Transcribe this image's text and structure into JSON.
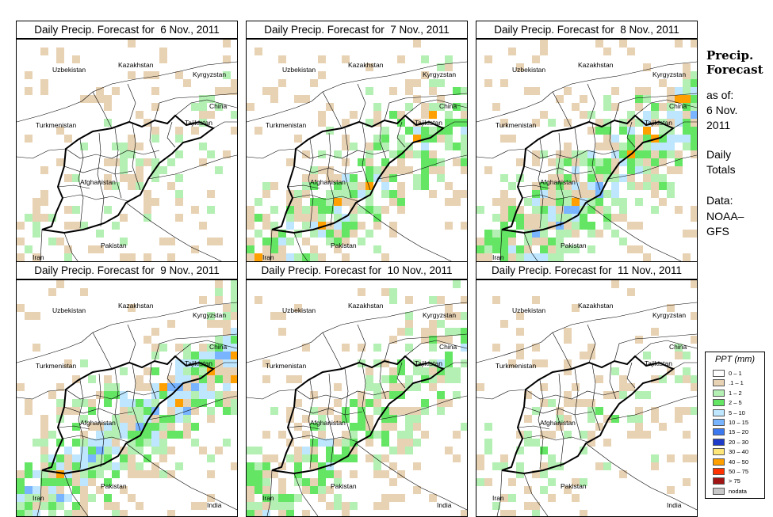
{
  "panels": [
    {
      "title": "Daily Precip. Forecast for  6 Nov., 2011",
      "seed": 3,
      "intensity": 0.2
    },
    {
      "title": "Daily Precip. Forecast for  7 Nov., 2011",
      "seed": 11,
      "intensity": 0.7
    },
    {
      "title": "Daily Precip. Forecast for  8 Nov., 2011",
      "seed": 29,
      "intensity": 0.85
    },
    {
      "title": "Daily Precip. Forecast for  9 Nov., 2011",
      "seed": 41,
      "intensity": 0.9
    },
    {
      "title": "Daily Precip. Forecast for  10 Nov., 2011",
      "seed": 57,
      "intensity": 0.6
    },
    {
      "title": "Daily Precip. Forecast for  11 Nov., 2011",
      "seed": 73,
      "intensity": 0.3
    }
  ],
  "countries": [
    "Uzbekistan",
    "Kazakhstan",
    "Kyrgyzstan",
    "China",
    "Turkmenistan",
    "Tajikistan",
    "Afghanistan",
    "Iran",
    "Pakistan",
    "India"
  ],
  "side": {
    "title": "Precip. Forecast",
    "asof": "as of:",
    "date": "6 Nov. 2011",
    "totals": "Daily Totals",
    "data_label": "Data:",
    "source": "NOAA–GFS"
  },
  "legend": {
    "title": "PPT (mm)",
    "items": [
      {
        "label": "0 – 1",
        "color": "#ffffff"
      },
      {
        "label": ".1 – 1",
        "color": "#e8d2b4"
      },
      {
        "label": "1 – 2",
        "color": "#b4f0b4"
      },
      {
        "label": "2 – 5",
        "color": "#64e664"
      },
      {
        "label": "5 – 10",
        "color": "#bee6ff"
      },
      {
        "label": "10 – 15",
        "color": "#78b4ff"
      },
      {
        "label": "15 – 20",
        "color": "#3c78f0"
      },
      {
        "label": "20 – 30",
        "color": "#1e3cc8"
      },
      {
        "label": "30 – 40",
        "color": "#ffe678"
      },
      {
        "label": "40 – 50",
        "color": "#ffa000"
      },
      {
        "label": "50 – 75",
        "color": "#ff3200"
      },
      {
        "label": "> 75",
        "color": "#a01414"
      },
      {
        "label": "nodata",
        "color": "#c8c8c8"
      }
    ]
  }
}
